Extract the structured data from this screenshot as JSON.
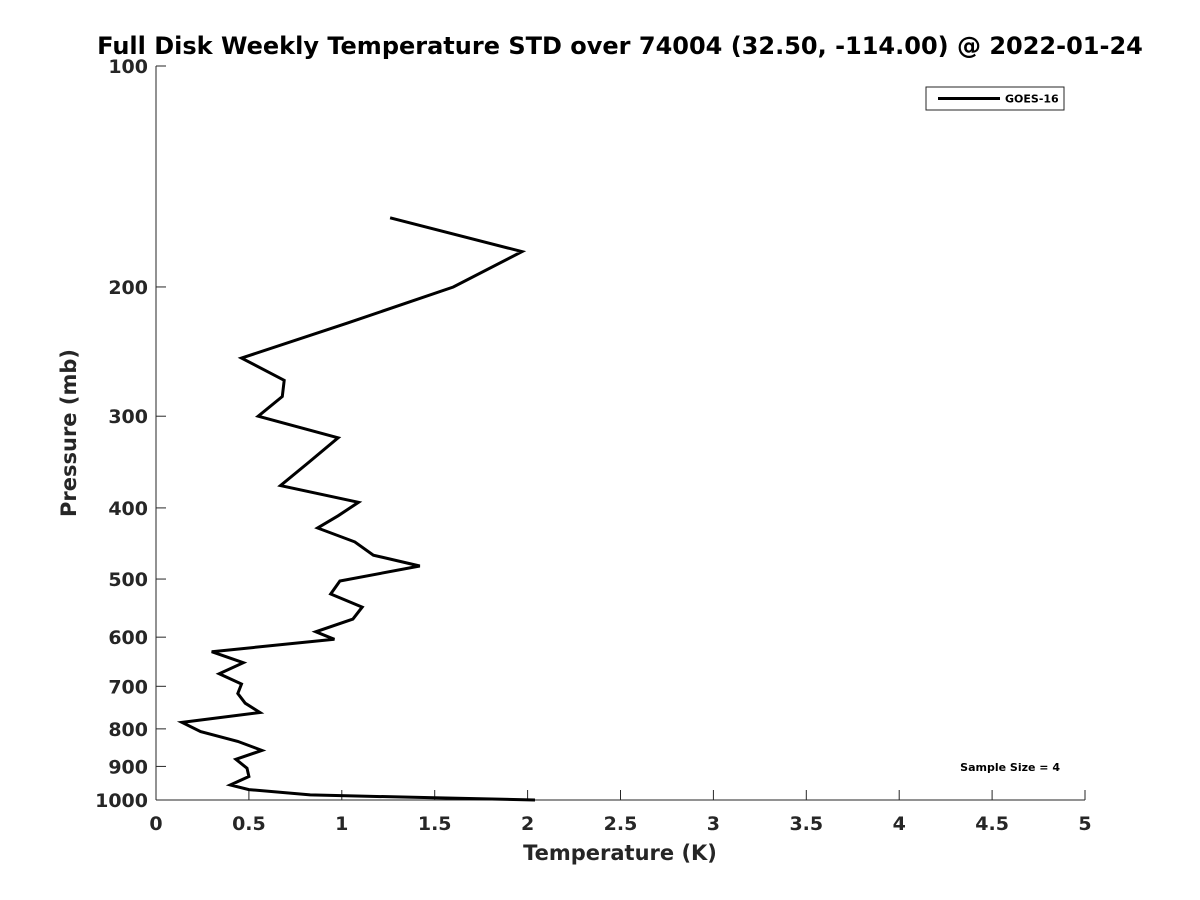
{
  "chart_data": {
    "type": "line",
    "title": "Full Disk Weekly Temperature STD over 74004 (32.50, -114.00) @ 2022-01-24",
    "xlabel": "Temperature (K)",
    "ylabel": "Pressure (mb)",
    "xlim": [
      0,
      5
    ],
    "ylim": [
      100,
      1000
    ],
    "yscale": "log",
    "y_reversed": true,
    "xticks": [
      "0",
      "0.5",
      "1",
      "1.5",
      "2",
      "2.5",
      "3",
      "3.5",
      "4",
      "4.5",
      "5"
    ],
    "xtick_values": [
      0,
      0.5,
      1,
      1.5,
      2,
      2.5,
      3,
      3.5,
      4,
      4.5,
      5
    ],
    "yticks": [
      "100",
      "200",
      "300",
      "400",
      "500",
      "600",
      "700",
      "800",
      "900",
      "1000"
    ],
    "ytick_values": [
      100,
      200,
      300,
      400,
      500,
      600,
      700,
      800,
      900,
      1000
    ],
    "grid": false,
    "legend_position": "top-right",
    "annotation": "Sample Size = 4",
    "series": [
      {
        "name": "GOES-16",
        "color": "#000000",
        "x": [
          1.26,
          1.97,
          1.6,
          1.03,
          0.46,
          0.69,
          0.68,
          0.55,
          0.98,
          0.82,
          0.67,
          1.09,
          0.98,
          0.87,
          1.07,
          1.17,
          1.42,
          0.99,
          0.94,
          1.11,
          1.06,
          0.86,
          0.96,
          0.3,
          0.47,
          0.34,
          0.46,
          0.44,
          0.48,
          0.56,
          0.14,
          0.24,
          0.44,
          0.57,
          0.43,
          0.49,
          0.5,
          0.4,
          0.5,
          0.83,
          1.5,
          2.04
        ],
        "y": [
          161,
          179,
          200,
          224,
          250,
          268,
          282,
          300,
          321,
          347,
          373,
          393,
          410,
          426,
          445,
          464,
          480,
          503,
          524,
          546,
          567,
          590,
          604,
          628,
          650,
          673,
          695,
          716,
          738,
          760,
          784,
          807,
          832,
          856,
          880,
          905,
          929,
          954,
          968,
          984,
          993,
          1000
        ]
      }
    ]
  }
}
